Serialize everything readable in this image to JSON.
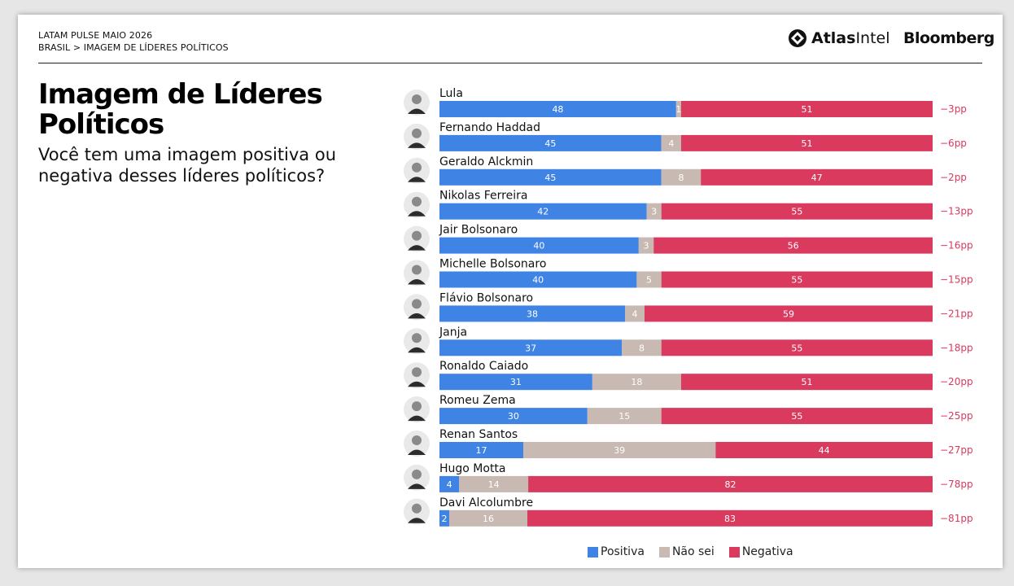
{
  "header": {
    "line1": "LATAM PULSE MAIO 2026",
    "line2": "BRASIL > IMAGEM DE LÍDERES POLÍTICOS",
    "brand_atlas_bold": "Atlas",
    "brand_atlas_light": "Intel",
    "brand_bloomberg": "Bloomberg"
  },
  "title": "Imagem de Líderes Políticos",
  "subtitle": "Você tem uma imagem positiva ou negativa desses líderes políticos?",
  "colors": {
    "positiva": "#3f84e5",
    "nao_sei": "#c8bab2",
    "negativa": "#d93a5e",
    "net_text": "#d93a5e"
  },
  "legend": [
    {
      "label": "Positiva",
      "color": "#3f84e5"
    },
    {
      "label": "Não sei",
      "color": "#c8bab2"
    },
    {
      "label": "Negativa",
      "color": "#d93a5e"
    }
  ],
  "chart_data": {
    "type": "bar",
    "orientation": "horizontal-stacked-100",
    "categories": [
      "Lula",
      "Fernando Haddad",
      "Geraldo Alckmin",
      "Nikolas Ferreira",
      "Jair Bolsonaro",
      "Michelle Bolsonaro",
      "Flávio Bolsonaro",
      "Janja",
      "Ronaldo Caiado",
      "Romeu Zema",
      "Renan Santos",
      "Hugo Motta",
      "Davi Alcolumbre"
    ],
    "series": [
      {
        "name": "Positiva",
        "values": [
          48,
          45,
          45,
          42,
          40,
          40,
          38,
          37,
          31,
          30,
          17,
          4,
          2
        ]
      },
      {
        "name": "Não sei",
        "values": [
          1,
          4,
          8,
          3,
          3,
          5,
          4,
          8,
          18,
          15,
          39,
          14,
          16
        ]
      },
      {
        "name": "Negativa",
        "values": [
          51,
          51,
          47,
          55,
          56,
          55,
          59,
          55,
          51,
          55,
          44,
          82,
          83
        ]
      }
    ],
    "net_labels": [
      "−3pp",
      "−6pp",
      "−2pp",
      "−13pp",
      "−16pp",
      "−15pp",
      "−21pp",
      "−18pp",
      "−20pp",
      "−25pp",
      "−27pp",
      "−78pp",
      "−81pp"
    ],
    "legend_position": "bottom"
  }
}
